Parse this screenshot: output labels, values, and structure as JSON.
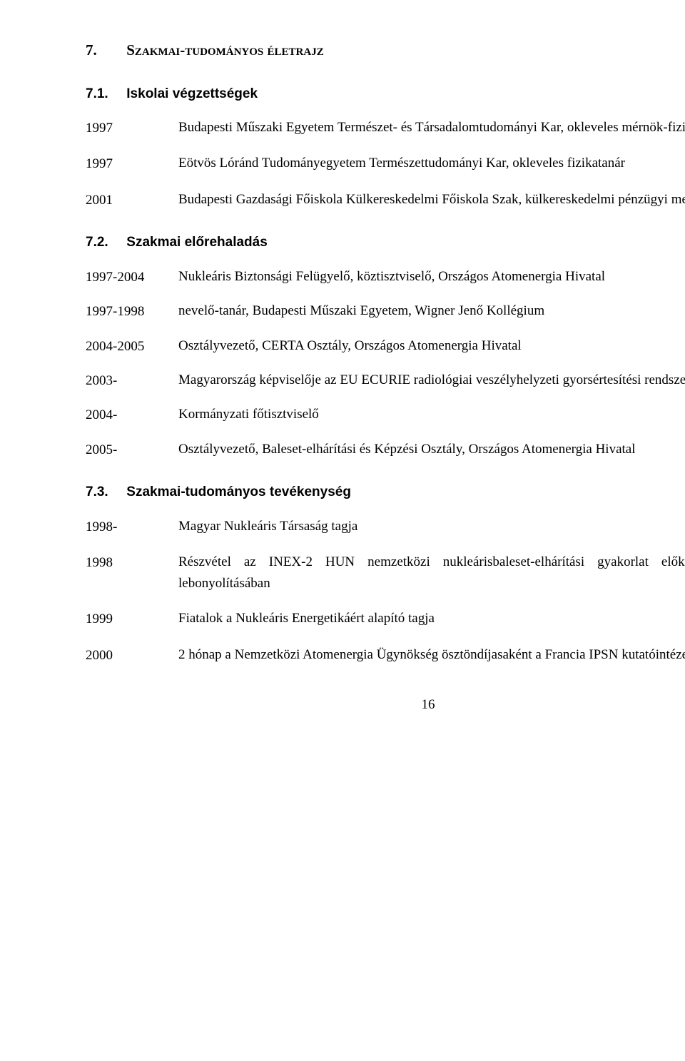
{
  "heading": {
    "num": "7.",
    "title": "Szakmai-tudományos életrajz"
  },
  "sections": {
    "s71": {
      "num": "7.1.",
      "title": "Iskolai végzettségek",
      "items": [
        {
          "year": "1997",
          "desc": "Budapesti Műszaki Egyetem Természet- és Társadalomtudományi Kar, okleveles mérnök-fizikus"
        },
        {
          "year": "1997",
          "desc": "Eötvös Lóránd Tudományegyetem Természettudományi Kar, okleveles fizikatanár"
        },
        {
          "year": "2001",
          "desc": "Budapesti Gazdasági Főiskola Külkereskedelmi Főiskola Szak, külkereskedelmi pénzügyi menedzser"
        }
      ]
    },
    "s72": {
      "num": "7.2.",
      "title": "Szakmai előrehaladás",
      "items": [
        {
          "year": "1997-2004",
          "desc": "Nukleáris Biztonsági Felügyelő, köztisztviselő, Országos Atomenergia Hivatal"
        },
        {
          "year": "1997-1998",
          "desc": "nevelő-tanár, Budapesti Műszaki Egyetem, Wigner Jenő Kollégium"
        },
        {
          "year": "2004-2005",
          "desc": "Osztályvezető, CERTA Osztály, Országos Atomenergia Hivatal"
        },
        {
          "year": "2003-",
          "desc": "Magyarország képviselője az EU ECURIE radiológiai veszélyhelyzeti gyorsértesítési rendszerben"
        },
        {
          "year": "2004-",
          "desc": "Kormányzati főtisztviselő"
        },
        {
          "year": "2005-",
          "desc": "Osztályvezető, Baleset-elhárítási és Képzési Osztály, Országos Atomenergia Hivatal"
        }
      ]
    },
    "s73": {
      "num": "7.3.",
      "title": "Szakmai-tudományos tevékenység",
      "items": [
        {
          "year": "1998-",
          "desc": "Magyar Nukleáris Társaság tagja"
        },
        {
          "year": "1998",
          "desc": "Részvétel az INEX-2 HUN nemzetközi nukleárisbaleset-elhárítási gyakorlat előkészítésében és lebonyolításában"
        },
        {
          "year": "1999",
          "desc": "Fiatalok a Nukleáris Energetikáért alapító tagja"
        },
        {
          "year": "2000",
          "desc": "2 hónap a Nemzetközi Atomenergia Ügynökség ösztöndíjasaként a Francia IPSN kutatóintézetnél"
        }
      ]
    }
  },
  "page_number": "16"
}
